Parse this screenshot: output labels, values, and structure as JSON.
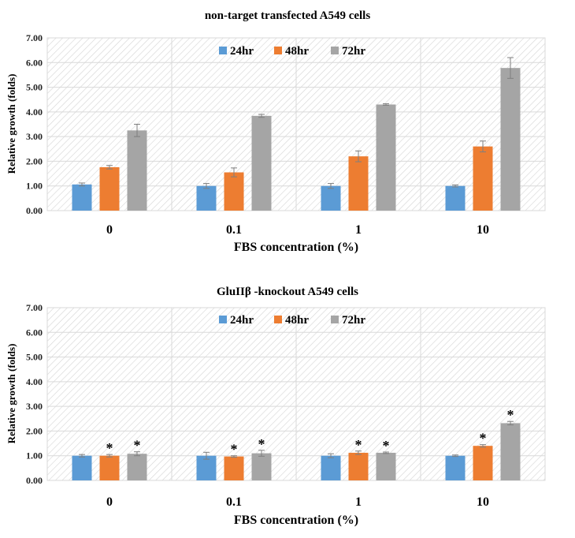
{
  "chart_data": [
    {
      "type": "bar",
      "title": "non-target transfected A549 cells",
      "xlabel": "FBS concentration (%)",
      "ylabel": "Relative growth (folds)",
      "ylim": [
        0,
        7
      ],
      "ytick_labels": [
        "0.00",
        "1.00",
        "2.00",
        "3.00",
        "4.00",
        "5.00",
        "6.00",
        "7.00"
      ],
      "categories": [
        "0",
        "0.1",
        "1",
        "10"
      ],
      "legend": "top-center",
      "grid": true,
      "series": [
        {
          "name": "24hr",
          "color": "#5B9BD5",
          "values": [
            1.06,
            1.0,
            1.0,
            1.0
          ],
          "errors": [
            0.06,
            0.1,
            0.1,
            0.04
          ],
          "stars": [
            false,
            false,
            false,
            false
          ]
        },
        {
          "name": "48hr",
          "color": "#ED7D31",
          "values": [
            1.76,
            1.55,
            2.2,
            2.6
          ],
          "errors": [
            0.07,
            0.18,
            0.22,
            0.22
          ],
          "stars": [
            false,
            false,
            false,
            false
          ]
        },
        {
          "name": "72hr",
          "color": "#A5A5A5",
          "values": [
            3.25,
            3.84,
            4.3,
            5.78
          ],
          "errors": [
            0.25,
            0.06,
            0.03,
            0.42
          ],
          "stars": [
            false,
            false,
            false,
            false
          ]
        }
      ]
    },
    {
      "type": "bar",
      "title": "GluIIβ -knockout A549 cells",
      "xlabel": "FBS concentration (%)",
      "ylabel": "Relative growth (folds)",
      "ylim": [
        0,
        7
      ],
      "ytick_labels": [
        "0.00",
        "1.00",
        "2.00",
        "3.00",
        "4.00",
        "5.00",
        "6.00",
        "7.00"
      ],
      "categories": [
        "0",
        "0.1",
        "1",
        "10"
      ],
      "legend": "top-center",
      "grid": true,
      "significance_marker": "*",
      "series": [
        {
          "name": "24hr",
          "color": "#5B9BD5",
          "values": [
            1.0,
            1.0,
            1.0,
            1.0
          ],
          "errors": [
            0.05,
            0.14,
            0.08,
            0.03
          ],
          "stars": [
            false,
            false,
            false,
            false
          ]
        },
        {
          "name": "48hr",
          "color": "#ED7D31",
          "values": [
            1.0,
            0.97,
            1.12,
            1.4
          ],
          "errors": [
            0.05,
            0.03,
            0.07,
            0.05
          ],
          "stars": [
            true,
            true,
            true,
            true
          ]
        },
        {
          "name": "72hr",
          "color": "#A5A5A5",
          "values": [
            1.08,
            1.1,
            1.12,
            2.32
          ],
          "errors": [
            0.08,
            0.12,
            0.03,
            0.07
          ],
          "stars": [
            true,
            true,
            true,
            true
          ]
        }
      ]
    }
  ]
}
